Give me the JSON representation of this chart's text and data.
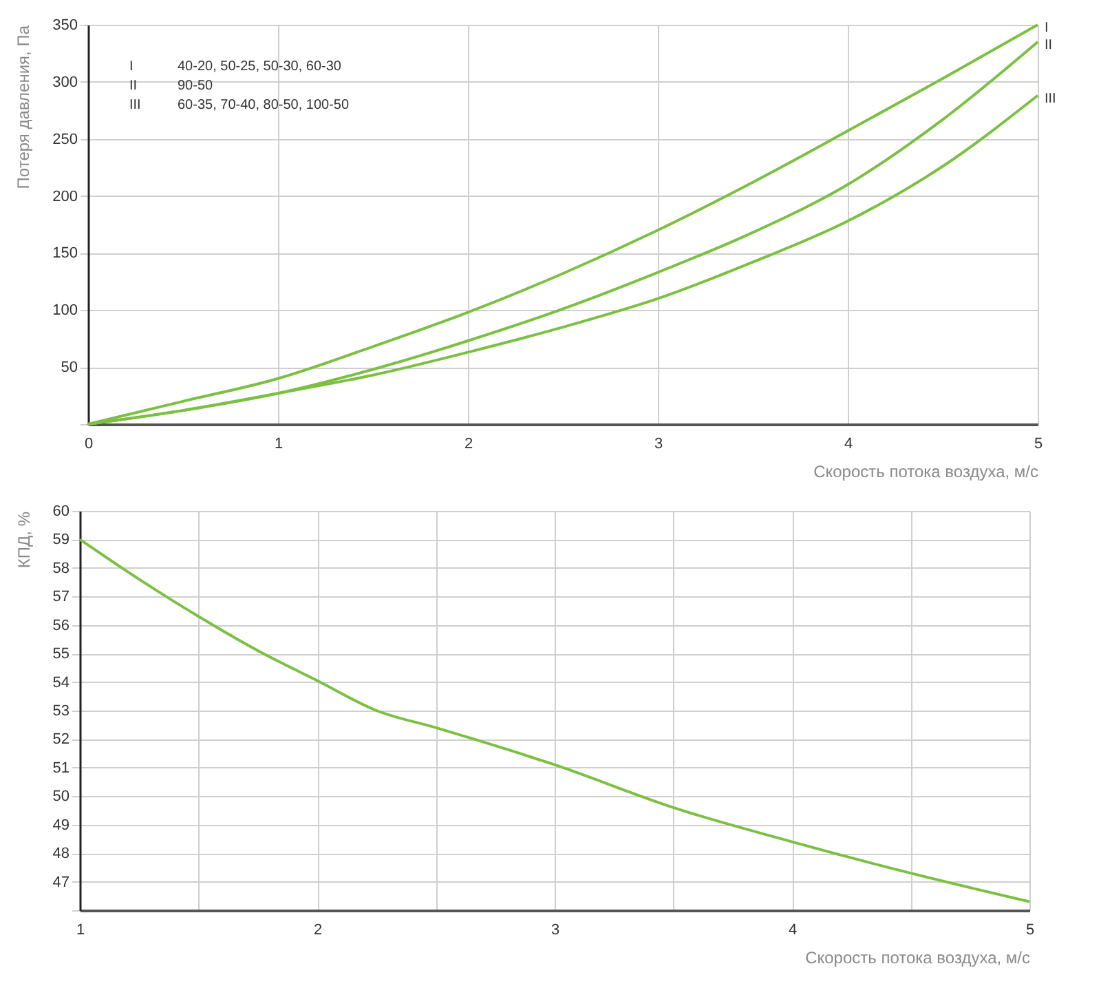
{
  "chart_data": [
    {
      "type": "line",
      "ylabel": "Потеря давления, Па",
      "xlabel": "Скорость потока воздуха, м/с",
      "x": [
        0,
        0.5,
        1,
        1.5,
        2,
        2.5,
        3,
        3.5,
        4,
        4.5,
        5
      ],
      "series": [
        {
          "name": "I",
          "color": "#7cc043",
          "values": [
            0,
            20,
            40,
            68,
            98,
            132,
            170,
            212,
            257,
            303,
            350
          ]
        },
        {
          "name": "II",
          "color": "#7cc043",
          "values": [
            0,
            12,
            27,
            48,
            73,
            101,
            133,
            168,
            210,
            267,
            335
          ]
        },
        {
          "name": "III",
          "color": "#7cc043",
          "values": [
            0,
            12,
            27,
            43,
            63,
            85,
            110,
            142,
            178,
            226,
            288
          ]
        }
      ],
      "annotations": [
        "40-20, 50-25, 50-30, 60-30",
        "90-50",
        "60-35, 70-40, 80-50, 100-50"
      ],
      "xlim": [
        0,
        5
      ],
      "xticks": [
        0,
        1,
        2,
        3,
        4,
        5
      ],
      "ylim": [
        0,
        350
      ],
      "yticks": [
        {
          "value": 0,
          "label": null
        },
        50,
        100,
        150,
        200,
        250,
        300,
        350
      ],
      "grid": true
    },
    {
      "type": "line",
      "ylabel": "КПД, %",
      "xlabel": "Скорость потока воздуха, м/с",
      "x": [
        1,
        1.25,
        1.5,
        1.75,
        2,
        2.25,
        2.5,
        3,
        3.5,
        4,
        4.5,
        5
      ],
      "series": [
        {
          "color": "#7cc043",
          "values": [
            59,
            57.6,
            56.3,
            55.1,
            54.05,
            53.0,
            52.4,
            51.1,
            49.6,
            48.4,
            47.3,
            46.3
          ]
        }
      ],
      "xlim": [
        1,
        5
      ],
      "xticks": [
        1,
        {
          "value": 1.5,
          "label": null
        },
        2,
        {
          "value": 2.5,
          "label": null
        },
        3,
        {
          "value": 3.5,
          "label": null
        },
        4,
        {
          "value": 4.5,
          "label": null
        },
        5
      ],
      "ylim": [
        46,
        60
      ],
      "yticks": [
        {
          "value": 46,
          "label": null
        },
        47,
        48,
        49,
        50,
        51,
        52,
        53,
        54,
        55,
        56,
        57,
        58,
        59,
        60
      ],
      "grid": true
    }
  ]
}
